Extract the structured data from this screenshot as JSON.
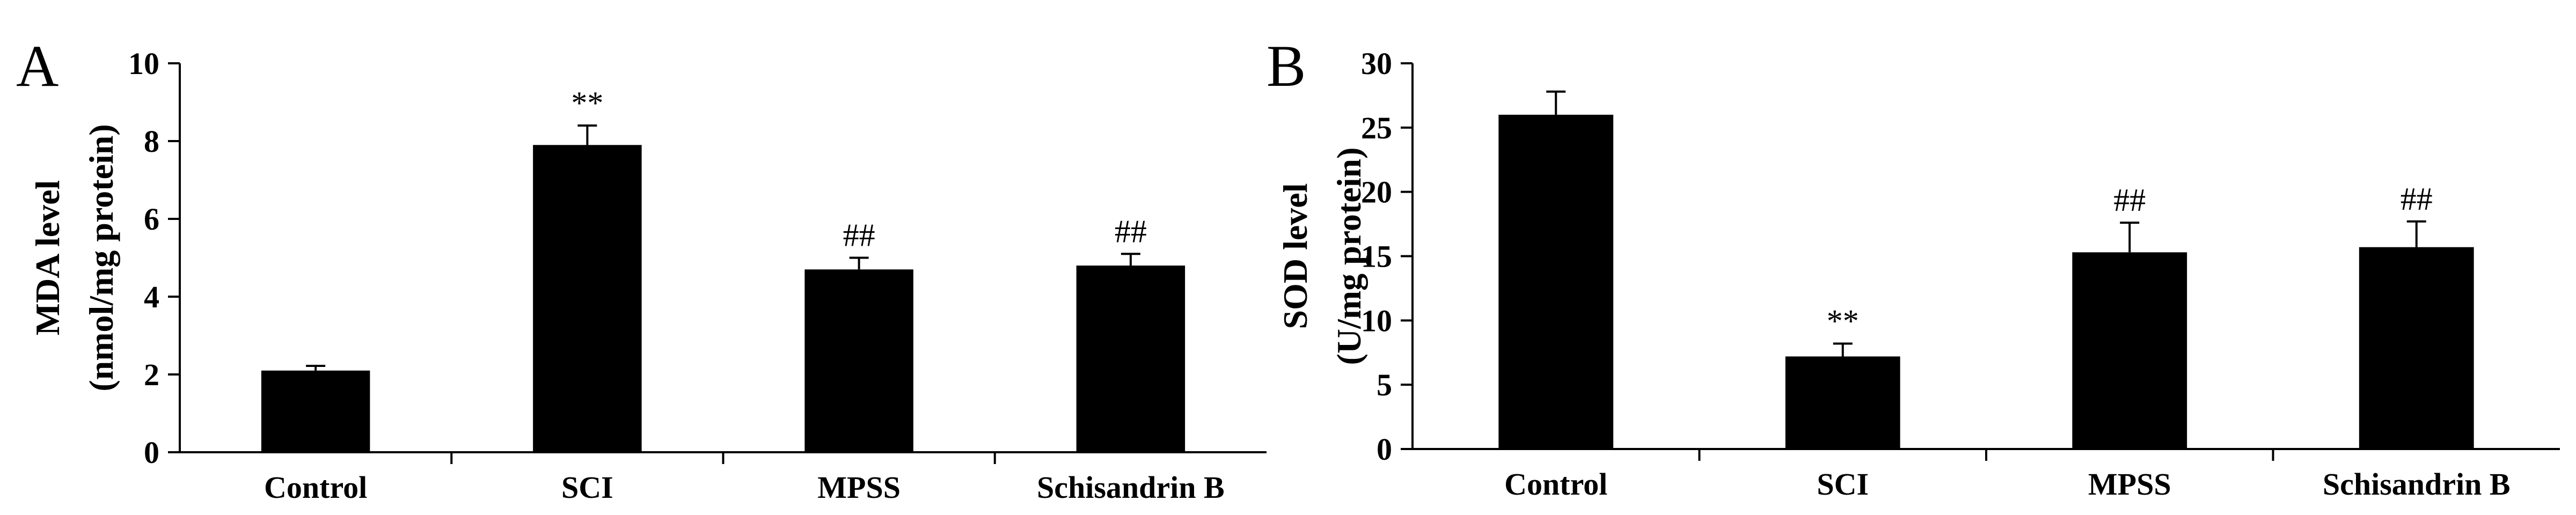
{
  "chart_data": [
    {
      "panel": "A",
      "type": "bar",
      "categories": [
        "Control",
        "SCI",
        "MPSS",
        "Schisandrin B"
      ],
      "values": [
        2.1,
        7.9,
        4.7,
        4.8
      ],
      "errors": [
        0.12,
        0.5,
        0.3,
        0.3
      ],
      "annotations": [
        "",
        "**",
        "##",
        "##"
      ],
      "ylabel": "MDA level",
      "ylabel_unit": "(nmol/mg protein)",
      "ylim": [
        0,
        10
      ],
      "yticks": [
        0,
        2,
        4,
        6,
        8,
        10
      ],
      "bar_color": "#000000"
    },
    {
      "panel": "B",
      "type": "bar",
      "categories": [
        "Control",
        "SCI",
        "MPSS",
        "Schisandrin B"
      ],
      "values": [
        26.0,
        7.2,
        15.3,
        15.7
      ],
      "errors": [
        1.8,
        1.0,
        2.3,
        2.0
      ],
      "annotations": [
        "",
        "**",
        "##",
        "##"
      ],
      "ylabel": "SOD level",
      "ylabel_unit": "(U/mg protein)",
      "ylim": [
        0,
        30
      ],
      "yticks": [
        0,
        5,
        10,
        15,
        20,
        25,
        30
      ],
      "bar_color": "#000000"
    }
  ]
}
